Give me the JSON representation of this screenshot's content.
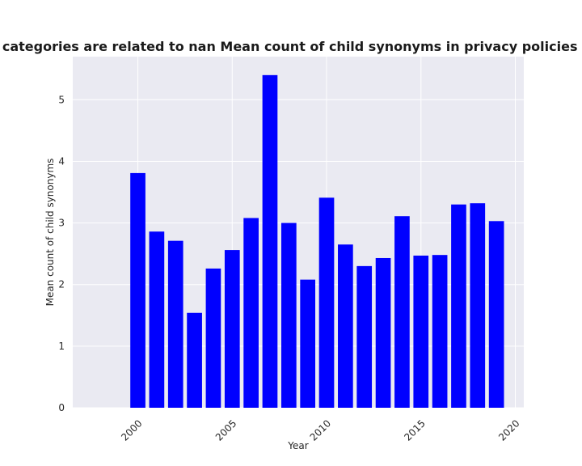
{
  "chart_data": {
    "type": "bar",
    "title": "when categories are related to nan Mean count of child synonyms in privacy policies by Year",
    "xlabel": "Year",
    "ylabel": "Mean count of child synonyms",
    "x": [
      2000,
      2001,
      2002,
      2003,
      2004,
      2005,
      2006,
      2007,
      2008,
      2009,
      2010,
      2011,
      2012,
      2013,
      2014,
      2015,
      2016,
      2017,
      2018,
      2019
    ],
    "values": [
      3.81,
      2.86,
      2.71,
      1.54,
      2.26,
      2.56,
      3.08,
      5.4,
      3.0,
      2.08,
      3.41,
      2.65,
      2.3,
      2.43,
      3.11,
      2.47,
      2.48,
      3.3,
      3.32,
      3.03
    ],
    "xlim": [
      1996.55,
      2020.45
    ],
    "ylim": [
      0,
      5.7
    ],
    "xticks": [
      2000,
      2005,
      2010,
      2015,
      2020
    ],
    "yticks": [
      0,
      1,
      2,
      3,
      4,
      5
    ],
    "bar_color": "#0000ff",
    "background_color": "#eaeaf2",
    "grid_color": "#ffffff",
    "grid": true
  }
}
